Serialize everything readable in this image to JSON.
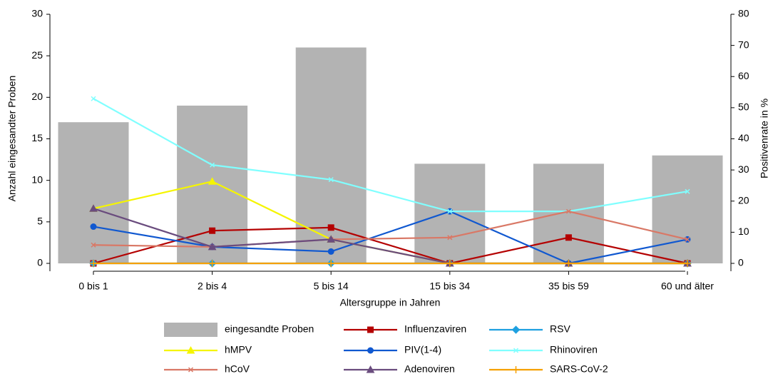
{
  "chart_data": {
    "type": "bar",
    "x_label": "Altersgruppe in Jahren",
    "y_label": "Anzahl eingesandter Proben",
    "y2_label": "Positivenrate in %",
    "categories": [
      "0 bis 1",
      "2 bis 4",
      "5 bis 14",
      "15 bis 34",
      "35 bis 59",
      "60 und älter"
    ],
    "ylim": [
      0,
      30
    ],
    "yticks": [
      0,
      5,
      10,
      15,
      20,
      25,
      30
    ],
    "y2lim": [
      0,
      80
    ],
    "y2ticks": [
      0,
      10,
      20,
      30,
      40,
      50,
      60,
      70,
      80
    ],
    "series": [
      {
        "name": "eingesandte Proben",
        "type": "bar",
        "color": "#b3b3b3",
        "values": [
          17,
          19,
          26,
          12,
          12,
          13
        ]
      },
      {
        "name": "Influenzaviren",
        "type": "line",
        "marker": "square",
        "axis": "y2",
        "color": "#b40000",
        "values": [
          0,
          10.5,
          11.5,
          0,
          8.3,
          0
        ]
      },
      {
        "name": "RSV",
        "type": "line",
        "marker": "diamond",
        "axis": "y2",
        "color": "#1ea0e0",
        "values": [
          0,
          0,
          0,
          0,
          0,
          0
        ]
      },
      {
        "name": "hMPV",
        "type": "line",
        "marker": "triangle",
        "axis": "y2",
        "color": "#f5f500",
        "values": [
          17.6,
          26.3,
          7.7,
          0,
          0,
          0
        ]
      },
      {
        "name": "PIV(1-4)",
        "type": "line",
        "marker": "circle",
        "axis": "y2",
        "color": "#1058d0",
        "values": [
          11.8,
          5.3,
          3.8,
          16.7,
          0,
          7.7
        ]
      },
      {
        "name": "Rhinoviren",
        "type": "line",
        "marker": "cross",
        "axis": "y2",
        "color": "#80ffff",
        "values": [
          52.9,
          31.6,
          26.9,
          16.7,
          16.7,
          23.1
        ]
      },
      {
        "name": "hCoV",
        "type": "line",
        "marker": "cross",
        "axis": "y2",
        "color": "#d97866",
        "values": [
          5.9,
          5.3,
          7.7,
          8.3,
          16.7,
          7.7
        ]
      },
      {
        "name": "Adenoviren",
        "type": "line",
        "marker": "triangle",
        "axis": "y2",
        "color": "#6a4c7e",
        "values": [
          17.6,
          5.3,
          7.7,
          0,
          0,
          0
        ]
      },
      {
        "name": "SARS-CoV-2",
        "type": "line",
        "marker": "plus",
        "axis": "y2",
        "color": "#f5a000",
        "values": [
          0,
          0,
          0,
          0,
          0,
          0
        ]
      }
    ]
  }
}
